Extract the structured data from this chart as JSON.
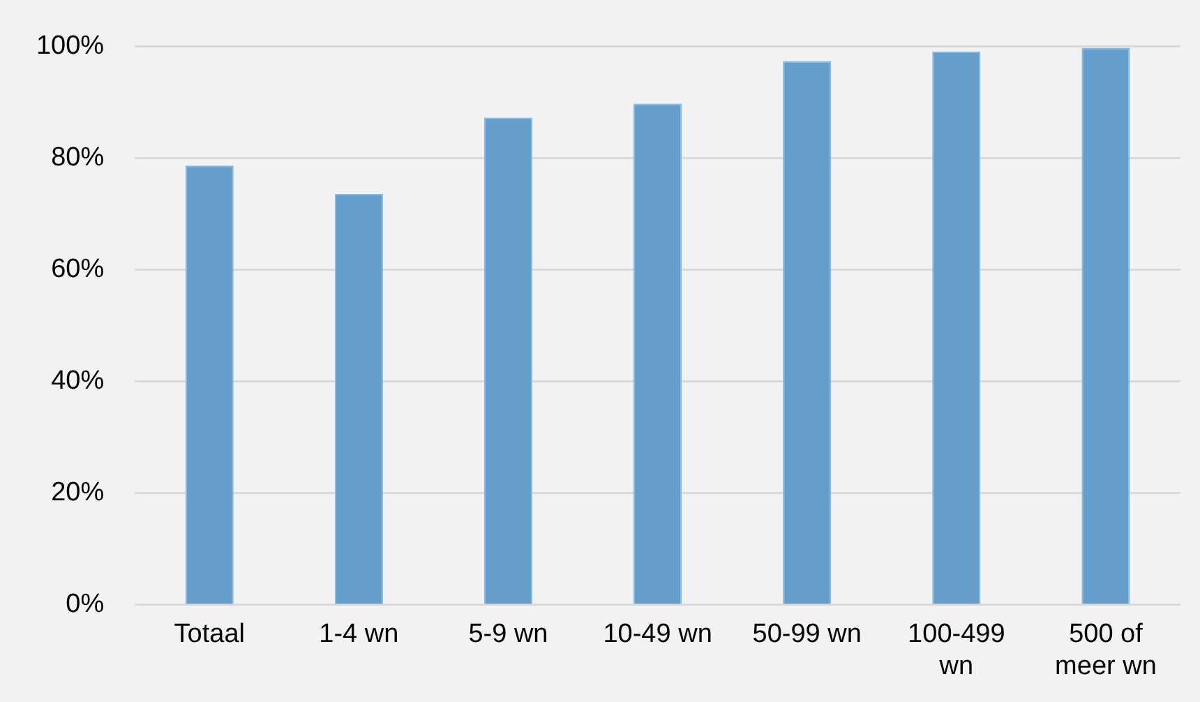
{
  "chart_data": {
    "type": "bar",
    "categories": [
      "Totaal",
      "1-4 wn",
      "5-9 wn",
      "10-49 wn",
      "50-99 wn",
      "100-499 wn",
      "500 of meer wn"
    ],
    "values": [
      78.7,
      73.6,
      87.3,
      89.8,
      97.4,
      99.1,
      99.8
    ],
    "color": "#659ecb",
    "ylim": [
      0,
      100
    ],
    "yticks": [
      {
        "value": 0,
        "label": "0%"
      },
      {
        "value": 20,
        "label": "20%"
      },
      {
        "value": 40,
        "label": "40%"
      },
      {
        "value": 60,
        "label": "60%"
      },
      {
        "value": 80,
        "label": "80%"
      },
      {
        "value": 100,
        "label": "100%"
      }
    ],
    "grid": "y",
    "legend": false
  }
}
